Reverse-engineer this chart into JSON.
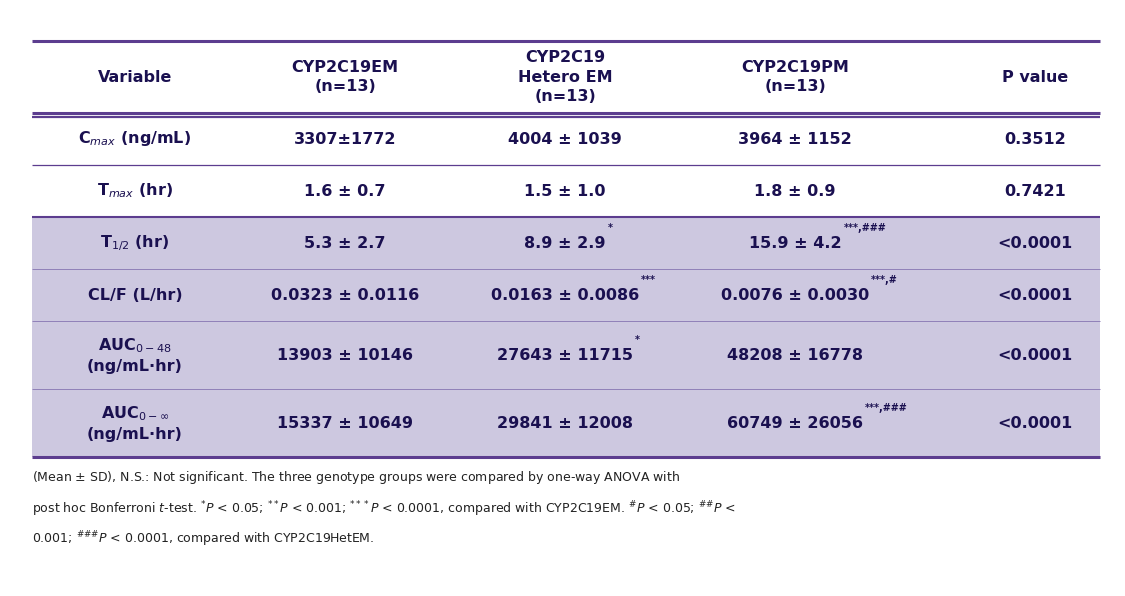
{
  "headers": [
    "Variable",
    "CYP2C19EM\n(n=13)",
    "CYP2C19\nHetero EM\n(n=13)",
    "CYP2C19PM\n(n=13)",
    "P value"
  ],
  "white_rows": [
    [
      "C$_{max}$ (ng/mL)",
      "3307±1772",
      "4004 ± 1039",
      "3964 ± 1152",
      "0.3512"
    ],
    [
      "T$_{max}$ (hr)",
      "1.6 ± 0.7",
      "1.5 ± 1.0",
      "1.8 ± 0.9",
      "0.7421"
    ]
  ],
  "purple_rows": [
    {
      "col0": "T$_{1/2}$ (hr)",
      "col1": "5.3 ± 2.7",
      "col2_main": "8.9 ± 2.9",
      "col2_sup": "*",
      "col3_main": "15.9 ± 4.2",
      "col3_sup": "***,###",
      "col4": "<0.0001",
      "two_line": false
    },
    {
      "col0": "CL/F (L/hr)",
      "col1": "0.0323 ± 0.0116",
      "col2_main": "0.0163 ± 0.0086",
      "col2_sup": "***",
      "col3_main": "0.0076 ± 0.0030",
      "col3_sup": "***,#",
      "col4": "<0.0001",
      "two_line": false
    },
    {
      "col0": "AUC$_{0-48}$\n(ng/mL·hr)",
      "col1": "13903 ± 10146",
      "col2_main": "27643 ± 11715",
      "col2_sup": "*",
      "col3_main": "48208 ± 16778",
      "col3_sup": "",
      "col4": "<0.0001",
      "two_line": true
    },
    {
      "col0": "AUC$_{0-∞}$\n(ng/mL·hr)",
      "col1": "15337 ± 10649",
      "col2_main": "29841 ± 12008",
      "col2_sup": "",
      "col3_main": "60749 ± 26056",
      "col3_sup": "***,###",
      "col4": "<0.0001",
      "two_line": true
    }
  ],
  "purple_bg": "#cdc8e0",
  "white_bg": "#ffffff",
  "border_color": "#5c3d8f",
  "text_color": "#1a1050",
  "cell_fontsize": 11.5,
  "header_fontsize": 11.5,
  "footnote_fontsize": 9.0
}
